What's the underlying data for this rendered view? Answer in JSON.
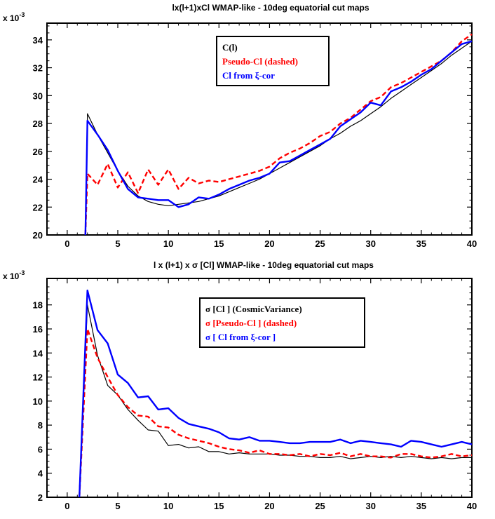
{
  "chart_data": [
    {
      "type": "line",
      "title": "lx(l+1)xCl  WMAP-like - 10deg equatorial cut maps",
      "exponent_label": "x 10",
      "exponent_power": "-3",
      "xlabel": "",
      "ylabel": "",
      "xlim": [
        -2,
        40
      ],
      "ylim": [
        20,
        35.2
      ],
      "xticks": [
        0,
        5,
        10,
        15,
        20,
        25,
        30,
        35,
        40
      ],
      "yticks": [
        20,
        22,
        24,
        26,
        28,
        30,
        32,
        34
      ],
      "grid": false,
      "legend_position": "top-center",
      "legend": [
        "C(l)",
        "Pseudo-Cl (dashed)",
        "Cl from ξ-cor"
      ],
      "series": [
        {
          "name": "C(l)",
          "color": "#000000",
          "style": "solid",
          "x": [
            1.8,
            2,
            3,
            4,
            5,
            6,
            7,
            8,
            9,
            10,
            11,
            12,
            13,
            14,
            15,
            16,
            17,
            18,
            19,
            20,
            21,
            22,
            23,
            24,
            25,
            26,
            27,
            28,
            29,
            30,
            31,
            32,
            33,
            34,
            35,
            36,
            37,
            38,
            39,
            40
          ],
          "y": [
            20,
            28.7,
            27.2,
            25.9,
            24.6,
            23.5,
            22.8,
            22.4,
            22.2,
            22.1,
            22.2,
            22.3,
            22.4,
            22.6,
            22.8,
            23.1,
            23.4,
            23.7,
            24.0,
            24.4,
            24.8,
            25.2,
            25.6,
            26.0,
            26.4,
            26.9,
            27.3,
            27.8,
            28.2,
            28.7,
            29.2,
            29.8,
            30.3,
            30.8,
            31.3,
            31.8,
            32.3,
            32.9,
            33.4,
            33.9
          ]
        },
        {
          "name": "Pseudo-Cl (dashed)",
          "color": "#ff0000",
          "style": "dashed",
          "x": [
            1.8,
            2,
            3,
            4,
            5,
            6,
            7,
            8,
            9,
            10,
            11,
            12,
            13,
            14,
            15,
            16,
            17,
            18,
            19,
            20,
            21,
            22,
            23,
            24,
            25,
            26,
            27,
            28,
            29,
            30,
            31,
            32,
            33,
            34,
            35,
            36,
            37,
            38,
            39,
            40
          ],
          "y": [
            20,
            24.4,
            23.6,
            25.1,
            23.4,
            24.5,
            23.0,
            24.7,
            23.6,
            24.7,
            23.3,
            24.1,
            23.7,
            23.9,
            23.8,
            24.0,
            24.2,
            24.4,
            24.6,
            24.9,
            25.5,
            25.9,
            26.2,
            26.6,
            27.1,
            27.4,
            28.0,
            28.4,
            29.0,
            29.6,
            29.9,
            30.6,
            30.9,
            31.3,
            31.7,
            32.1,
            32.5,
            33.1,
            33.9,
            34.4
          ]
        },
        {
          "name": "Cl from ξ-cor",
          "color": "#0000ff",
          "style": "solid",
          "x": [
            1.8,
            2,
            3,
            4,
            5,
            6,
            7,
            8,
            9,
            10,
            11,
            12,
            13,
            14,
            15,
            16,
            17,
            18,
            19,
            20,
            21,
            22,
            23,
            24,
            25,
            26,
            27,
            28,
            29,
            30,
            31,
            32,
            33,
            34,
            35,
            36,
            37,
            38,
            39,
            40
          ],
          "y": [
            20,
            28.2,
            27.2,
            26.1,
            24.6,
            23.3,
            22.7,
            22.6,
            22.5,
            22.5,
            22.0,
            22.2,
            22.7,
            22.6,
            22.9,
            23.3,
            23.6,
            23.9,
            24.1,
            24.4,
            25.2,
            25.3,
            25.7,
            26.1,
            26.5,
            26.9,
            27.8,
            28.3,
            28.8,
            29.5,
            29.3,
            30.3,
            30.6,
            31.0,
            31.5,
            31.9,
            32.5,
            33.1,
            33.7,
            33.9
          ]
        }
      ]
    },
    {
      "type": "line",
      "title": "l x (l+1) x σ [Cl]   WMAP-like - 10deg equatorial cut maps",
      "exponent_label": "x 10",
      "exponent_power": "-3",
      "xlabel": "",
      "ylabel": "",
      "xlim": [
        -2,
        40
      ],
      "ylim": [
        2,
        20.2
      ],
      "xticks": [
        0,
        5,
        10,
        15,
        20,
        25,
        30,
        35,
        40
      ],
      "yticks": [
        2,
        4,
        6,
        8,
        10,
        12,
        14,
        16,
        18
      ],
      "grid": false,
      "legend_position": "top-center",
      "legend": [
        "σ [Cl ] (CosmicVariance)",
        "σ [Pseudo-Cl ] (dashed)",
        "σ [ Cl from ξ-cor ]"
      ],
      "series": [
        {
          "name": "σ [Cl ] (CosmicVariance)",
          "color": "#000000",
          "style": "solid",
          "x": [
            1.2,
            2,
            3,
            4,
            5,
            6,
            7,
            8,
            9,
            10,
            11,
            12,
            13,
            14,
            15,
            16,
            17,
            18,
            19,
            20,
            21,
            22,
            23,
            24,
            25,
            26,
            27,
            28,
            29,
            30,
            31,
            32,
            33,
            34,
            35,
            36,
            37,
            38,
            39,
            40
          ],
          "y": [
            2,
            18.0,
            13.8,
            11.3,
            10.5,
            9.3,
            8.4,
            7.6,
            7.5,
            6.3,
            6.4,
            6.1,
            6.2,
            5.8,
            5.8,
            5.6,
            5.7,
            5.6,
            5.6,
            5.6,
            5.5,
            5.5,
            5.4,
            5.4,
            5.3,
            5.3,
            5.4,
            5.2,
            5.3,
            5.4,
            5.3,
            5.4,
            5.3,
            5.4,
            5.3,
            5.2,
            5.3,
            5.2,
            5.3,
            5.3
          ]
        },
        {
          "name": "σ [Pseudo-Cl ] (dashed)",
          "color": "#ff0000",
          "style": "dashed",
          "x": [
            1.2,
            2,
            3,
            4,
            5,
            6,
            7,
            8,
            9,
            10,
            11,
            12,
            13,
            14,
            15,
            16,
            17,
            18,
            19,
            20,
            21,
            22,
            23,
            24,
            25,
            26,
            27,
            28,
            29,
            30,
            31,
            32,
            33,
            34,
            35,
            36,
            37,
            38,
            39,
            40
          ],
          "y": [
            2,
            16.0,
            13.6,
            12.0,
            10.5,
            9.5,
            8.8,
            8.7,
            7.9,
            7.8,
            7.2,
            6.9,
            6.7,
            6.5,
            6.2,
            6.0,
            5.9,
            5.7,
            5.9,
            5.6,
            5.6,
            5.5,
            5.6,
            5.4,
            5.6,
            5.5,
            5.7,
            5.4,
            5.6,
            5.4,
            5.4,
            5.3,
            5.6,
            5.6,
            5.4,
            5.3,
            5.4,
            5.6,
            5.4,
            5.5
          ]
        },
        {
          "name": "σ [ Cl from ξ-cor ]",
          "color": "#0000ff",
          "style": "solid",
          "x": [
            1.2,
            2,
            3,
            4,
            5,
            6,
            7,
            8,
            9,
            10,
            11,
            12,
            13,
            14,
            15,
            16,
            17,
            18,
            19,
            20,
            21,
            22,
            23,
            24,
            25,
            26,
            27,
            28,
            29,
            30,
            31,
            32,
            33,
            34,
            35,
            36,
            37,
            38,
            39,
            40
          ],
          "y": [
            2,
            19.2,
            15.9,
            14.8,
            12.2,
            11.5,
            10.3,
            10.4,
            9.3,
            9.4,
            8.6,
            8.1,
            7.9,
            7.7,
            7.4,
            6.9,
            6.8,
            7.0,
            6.7,
            6.7,
            6.6,
            6.5,
            6.5,
            6.6,
            6.6,
            6.6,
            6.8,
            6.5,
            6.7,
            6.6,
            6.5,
            6.4,
            6.2,
            6.7,
            6.6,
            6.4,
            6.2,
            6.4,
            6.6,
            6.4
          ]
        }
      ]
    }
  ]
}
